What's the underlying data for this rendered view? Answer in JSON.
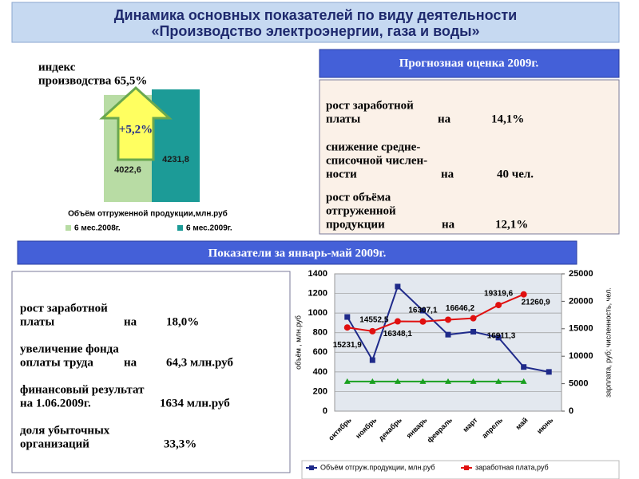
{
  "header": {
    "title_lines": [
      "Динамика основных показателей  по виду деятельности",
      "«Производство электроэнергии, газа и воды»"
    ]
  },
  "forecast": {
    "title": "Прогнозная оценка 2009г.",
    "items": [
      {
        "lines": [
          "рост заработной",
          "платы"
        ],
        "prep": "на",
        "value": "14,1%"
      },
      {
        "lines": [
          "снижение средне-",
          "списочной  числен-",
          "ности"
        ],
        "prep": "на",
        "value": "40 чел."
      },
      {
        "lines": [
          "рост объёма",
          "отгруженной",
          "продукции"
        ],
        "prep": "на",
        "value": "12,1%"
      }
    ]
  },
  "results": {
    "title": "Показатели за январь-май 2009г.",
    "items": [
      {
        "lines": [
          "рост заработной",
          "платы"
        ],
        "prep": "на",
        "value": "18,0%"
      },
      {
        "lines": [
          "увеличение фонда",
          "оплаты  труда"
        ],
        "prep": "на",
        "value": "64,3 млн.руб"
      },
      {
        "lines": [
          "финансовый результат",
          "на 1.06.2009г."
        ],
        "value": "1634 млн.руб"
      },
      {
        "lines": [
          "доля убыточных",
          "организаций"
        ],
        "value": "33,3%"
      }
    ]
  },
  "chart_data": [
    {
      "type": "bar",
      "title": "Объём отгруженной продукции,млн.руб",
      "annotation_lines": [
        "индекс",
        "производства  65,5%"
      ],
      "arrow_label": "+5,2%",
      "categories": [
        "6 мес.2008г.",
        "6 мес.2009г."
      ],
      "values": [
        4022.6,
        4231.8
      ],
      "value_labels": [
        "4022,6",
        "4231,8"
      ],
      "colors": [
        "#b8dca4",
        "#1c9b97"
      ],
      "ylim": [
        0,
        4500
      ]
    },
    {
      "type": "line",
      "y_label": "объём , млн.руб",
      "y2_label": "зарплата, руб; численность, чел.",
      "categories": [
        "октябрь",
        "ноябрь",
        "декабрь",
        "январь",
        "февраль",
        "март",
        "апрель",
        "май",
        "июнь"
      ],
      "ylim": [
        0,
        1400
      ],
      "yticks": [
        0,
        200,
        400,
        600,
        800,
        1000,
        1200,
        1400
      ],
      "y2lim": [
        0,
        25000
      ],
      "y2ticks": [
        0,
        5000,
        10000,
        15000,
        20000,
        25000
      ],
      "grid": true,
      "series": [
        {
          "name": "Объём отгруж.продукции, млн.руб",
          "color": "#1f2a8a",
          "marker": "square",
          "values": [
            960,
            520,
            1270,
            1025,
            780,
            810,
            750,
            450,
            400
          ]
        },
        {
          "name": "заработная плата,руб",
          "color": "#e01010",
          "marker": "circle",
          "axis": "y2",
          "values": [
            15231.9,
            14552.5,
            16348.1,
            16307.1,
            16646.2,
            16911.3,
            19319.6,
            21260.9,
            null
          ],
          "value_labels": [
            "15231,9",
            "14552,5",
            "16348,1",
            "16307,1",
            "16646,2",
            "16911,3",
            "19319,6",
            "21260,9",
            null
          ]
        },
        {
          "color": "#1aa020",
          "marker": "triangle",
          "axis": "y2",
          "values": [
            5400,
            5400,
            5400,
            5400,
            5400,
            5400,
            5400,
            5400,
            null
          ]
        }
      ]
    }
  ]
}
